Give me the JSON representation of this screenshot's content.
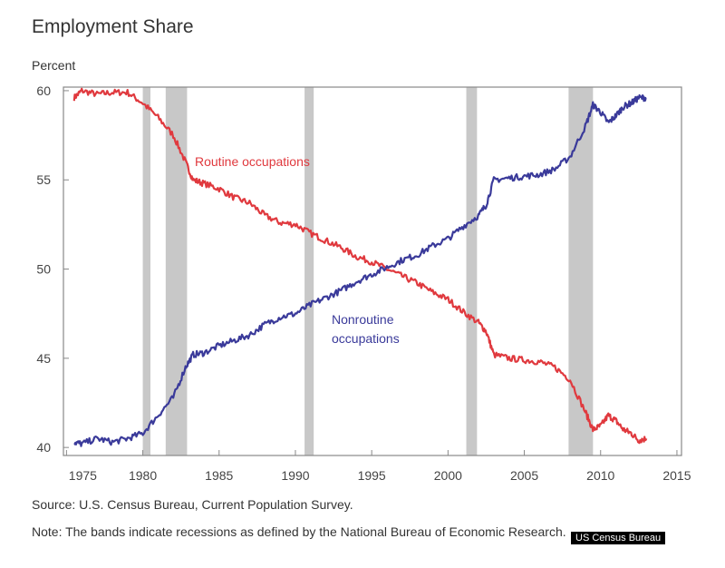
{
  "chart_data": {
    "type": "line",
    "title": "Employment Share",
    "ylabel": "Percent",
    "xlabel": "",
    "xlim": [
      1974.8,
      2015.3
    ],
    "ylim": [
      39.55,
      60.2
    ],
    "yticks": [
      40,
      45,
      50,
      55,
      60
    ],
    "xticks": [
      1975,
      1980,
      1985,
      1990,
      1995,
      2000,
      2005,
      2010,
      2015
    ],
    "recessions": [
      [
        1980.0,
        1980.5
      ],
      [
        1981.5,
        1982.9
      ],
      [
        1990.6,
        1991.2
      ],
      [
        2001.2,
        2001.9
      ],
      [
        2007.9,
        2009.5
      ]
    ],
    "series": [
      {
        "name": "Routine occupations",
        "color": "#e0393e",
        "x": [
          1975.5,
          1976,
          1977,
          1978,
          1979,
          1980,
          1981,
          1982,
          1982.8,
          1983.3,
          1984,
          1985,
          1986,
          1987,
          1988,
          1989,
          1990,
          1991,
          1992,
          1993,
          1994,
          1995,
          1996,
          1997,
          1998,
          1999,
          2000,
          2001,
          2002,
          2002.5,
          2003,
          2004,
          2005,
          2006,
          2007,
          2008,
          2009,
          2009.5,
          2010,
          2010.5,
          2011,
          2011.5,
          2012,
          2012.5,
          2013
        ],
        "y": [
          59.6,
          60,
          59.8,
          59.9,
          59.9,
          59.3,
          58.5,
          57.5,
          56,
          55,
          54.8,
          54.5,
          54,
          53.7,
          53,
          52.6,
          52.5,
          52,
          51.6,
          51.2,
          50.7,
          50.4,
          50,
          49.6,
          49.2,
          48.7,
          48.3,
          47.6,
          47,
          46.5,
          45.2,
          45,
          44.9,
          44.8,
          44.5,
          43.8,
          42,
          41,
          41.2,
          41.8,
          41.5,
          41,
          40.8,
          40.4,
          40.5
        ]
      },
      {
        "name": "Nonroutine occupations",
        "color": "#3a3a9a",
        "x": [
          1975.5,
          1976,
          1977,
          1978,
          1979,
          1980,
          1981,
          1982,
          1982.8,
          1983.3,
          1984,
          1985,
          1986,
          1987,
          1988,
          1989,
          1990,
          1991,
          1992,
          1993,
          1994,
          1995,
          1996,
          1997,
          1998,
          1999,
          2000,
          2001,
          2002,
          2002.5,
          2003,
          2004,
          2005,
          2006,
          2007,
          2008,
          2009,
          2009.5,
          2010,
          2010.5,
          2011,
          2011.5,
          2012,
          2012.5,
          2013
        ],
        "y": [
          40.3,
          40.2,
          40.5,
          40.3,
          40.5,
          40.8,
          41.8,
          42.8,
          44.5,
          45.2,
          45.3,
          45.7,
          46,
          46.3,
          46.9,
          47.3,
          47.5,
          48,
          48.4,
          48.8,
          49.3,
          49.7,
          50.1,
          50.5,
          50.8,
          51.3,
          51.7,
          52.4,
          53,
          53.6,
          55,
          55.1,
          55.2,
          55.3,
          55.6,
          56.3,
          58,
          59.2,
          58.8,
          58.2,
          58.6,
          59.1,
          59.3,
          59.6,
          59.6
        ]
      }
    ],
    "annotations": {
      "routine": "Routine occupations",
      "nonroutine_1": "Nonroutine",
      "nonroutine_2": "occupations"
    }
  },
  "source": "Source: U.S. Census Bureau, Current Population Survey.",
  "note": "Note: The bands indicate recessions as defined by the National Bureau of Economic Research.",
  "watermark": "US Census Bureau"
}
